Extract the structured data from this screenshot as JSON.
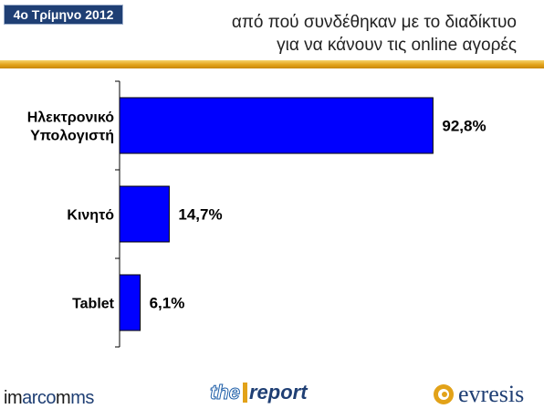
{
  "header": {
    "badge": "4ο Τρίμηνο 2012",
    "title_line1": "από πού συνδέθηκαν με το διαδίκτυο",
    "title_line2": "για να κάνουν τις online αγορές"
  },
  "chart_data": {
    "type": "bar",
    "orientation": "horizontal",
    "categories": [
      [
        "Ηλεκτρονικό",
        "Υπολογιστή"
      ],
      [
        "Κινητό"
      ],
      [
        "Tablet"
      ]
    ],
    "values": [
      92.8,
      14.7,
      6.1
    ],
    "value_labels": [
      "92,8%",
      "14,7%",
      "6,1%"
    ],
    "xlim": [
      0,
      100
    ],
    "grid": false,
    "legend": "none",
    "bar_color": "#0000ff"
  },
  "footer": {
    "imarcomms_a": "im",
    "imarcomms_b": "arco",
    "imarcomms_c": "m",
    "imarcomms_d": "ms",
    "thereport_a": "the",
    "thereport_b": "report",
    "evresis": "evresis"
  },
  "colors": {
    "badge": "#1f3f74",
    "stripe": "#e2a219",
    "bar": "#0000ff"
  }
}
